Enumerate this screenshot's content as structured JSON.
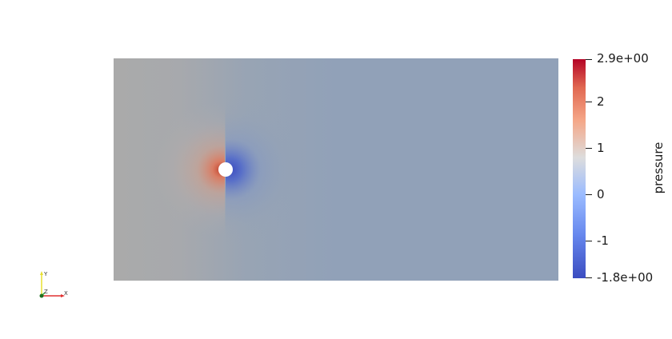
{
  "scene": {
    "field_name": "pressure",
    "colormap": "Cool to Warm",
    "background_color": "#ffffff",
    "obstacle_shape": "circle",
    "obstacle_color": "#ffffff"
  },
  "colorbar": {
    "title": "pressure",
    "range": [
      -1.8,
      2.9
    ],
    "max_label": "2.9e+00",
    "min_label": "-1.8e+00",
    "tick_labels": [
      "2",
      "1",
      "0",
      "-1"
    ],
    "colors": {
      "low": "#3b4cc0",
      "mid": "#dddddd",
      "high": "#b40426"
    }
  },
  "orientation_axes": {
    "x_label": "X",
    "y_label": "Y",
    "z_label": "Z",
    "x_color": "#e03030",
    "y_color": "#e8e030",
    "z_color": "#30b030"
  }
}
